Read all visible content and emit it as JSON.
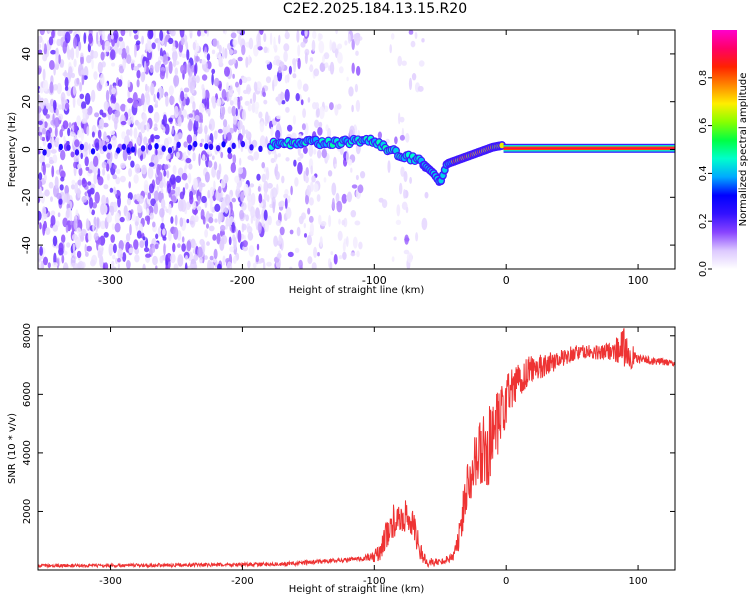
{
  "title": "C2E2.2025.184.13.15.R20",
  "chart_data": [
    {
      "type": "heatmap",
      "title": "C2E2.2025.184.13.15.R20",
      "xlabel": "Height of straight line (km)",
      "ylabel": "Frequency (Hz)",
      "xlim": [
        -355,
        128
      ],
      "ylim": [
        -50,
        50
      ],
      "xticks": [
        -300,
        -200,
        -100,
        0,
        100
      ],
      "yticks": [
        -40,
        -20,
        0,
        20,
        40
      ],
      "colorbar": {
        "label": "Normalized spectral amplitude",
        "range": [
          0,
          1
        ],
        "ticks": [
          0.0,
          0.2,
          0.4,
          0.6,
          0.8
        ],
        "colors": [
          "#ffffff",
          "#dcc8ff",
          "#8844ff",
          "#3311ff",
          "#0000ff",
          "#00aaff",
          "#00ffcc",
          "#00ff44",
          "#88ff00",
          "#ffee00",
          "#ff8800",
          "#ff2200",
          "#ff0066",
          "#ff00cc"
        ]
      },
      "ridge": {
        "x": [
          -350,
          -300,
          -250,
          -200,
          -180,
          -160,
          -140,
          -120,
          -105,
          -95,
          -85,
          -75,
          -65,
          -55,
          -50,
          -45,
          -40,
          -30,
          -20,
          -10,
          0,
          20,
          60,
          100,
          128
        ],
        "y": [
          0,
          0,
          1,
          1,
          2,
          3,
          3,
          3,
          4,
          2,
          -1,
          -3,
          -5,
          -10,
          -14,
          -6,
          -5,
          -3,
          -1,
          1,
          2,
          0.5,
          0.5,
          0.5,
          0.5
        ]
      }
    },
    {
      "type": "line",
      "xlabel": "Height of straight line (km)",
      "ylabel": "SNR (10 * v/v)",
      "xlim": [
        -355,
        128
      ],
      "ylim": [
        0,
        8300
      ],
      "xticks": [
        -300,
        -200,
        -100,
        0,
        100
      ],
      "yticks": [
        2000,
        4000,
        6000,
        8000
      ],
      "color": "#ee3333",
      "envelope": {
        "x": [
          -355,
          -300,
          -250,
          -200,
          -170,
          -150,
          -130,
          -110,
          -100,
          -95,
          -90,
          -85,
          -80,
          -75,
          -70,
          -65,
          -60,
          -55,
          -50,
          -45,
          -40,
          -35,
          -30,
          -25,
          -20,
          -15,
          -10,
          -5,
          0,
          10,
          20,
          30,
          40,
          50,
          60,
          70,
          80,
          90,
          95,
          100,
          110,
          120,
          128
        ],
        "y": [
          150,
          150,
          170,
          180,
          200,
          260,
          320,
          380,
          450,
          700,
          1300,
          1700,
          1600,
          1900,
          1500,
          600,
          300,
          250,
          280,
          350,
          500,
          1200,
          2900,
          3700,
          3900,
          4100,
          4300,
          5000,
          5800,
          6500,
          6900,
          7000,
          7200,
          7400,
          7450,
          7400,
          7500,
          7600,
          7300,
          7200,
          7150,
          7100,
          7050
        ]
      },
      "amplitude": {
        "x": [
          -355,
          -110,
          -100,
          -90,
          -80,
          -70,
          -60,
          -50,
          -40,
          -35,
          -30,
          -20,
          -10,
          -5,
          0,
          10,
          20,
          40,
          60,
          80,
          85,
          90,
          95,
          100,
          128
        ],
        "y": [
          50,
          80,
          200,
          550,
          600,
          500,
          200,
          100,
          200,
          600,
          900,
          1200,
          1500,
          1200,
          900,
          700,
          500,
          300,
          250,
          300,
          500,
          700,
          450,
          150,
          100
        ]
      }
    }
  ]
}
